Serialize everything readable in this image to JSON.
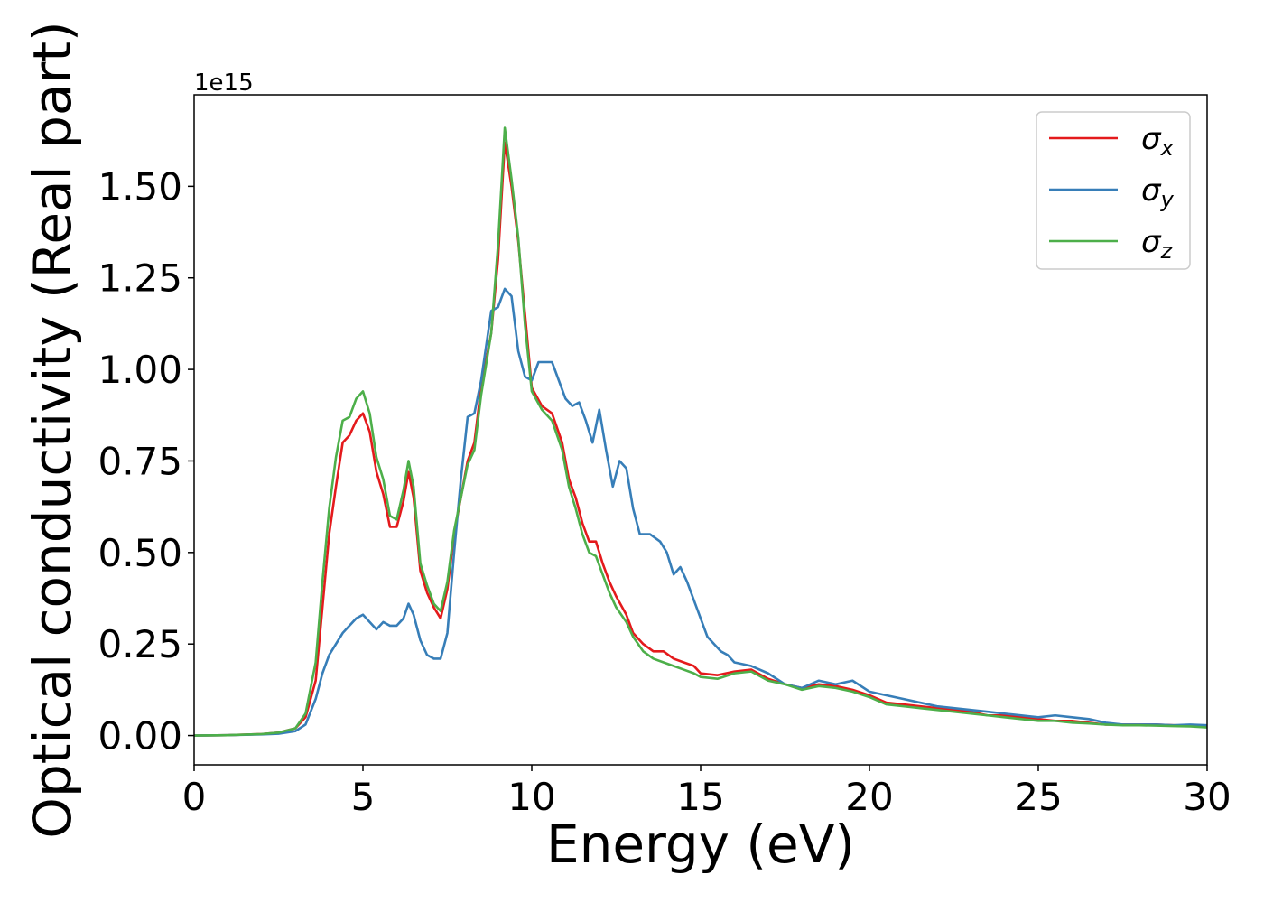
{
  "chart_data": {
    "type": "line",
    "xlabel": "Energy (eV)",
    "ylabel": "Optical conductivity (Real part)",
    "y_offset_text": "1e15",
    "y_scale": 1000000000000000.0,
    "xlim": [
      0,
      30
    ],
    "ylim": [
      -0.08,
      1.75
    ],
    "x_ticks": [
      0,
      5,
      10,
      15,
      20,
      25,
      30
    ],
    "x_tick_labels": [
      "0",
      "5",
      "10",
      "15",
      "20",
      "25",
      "30"
    ],
    "y_ticks": [
      0.0,
      0.25,
      0.5,
      0.75,
      1.0,
      1.25,
      1.5
    ],
    "y_tick_labels": [
      "0.00",
      "0.25",
      "0.50",
      "0.75",
      "1.00",
      "1.25",
      "1.50"
    ],
    "grid": false,
    "legend_position": "top-right",
    "series": [
      {
        "name": "σx",
        "legend_symbol": "σ",
        "legend_subscript": "x",
        "color": "#e41a1c",
        "points": [
          [
            0,
            0
          ],
          [
            1,
            0.001
          ],
          [
            2,
            0.004
          ],
          [
            2.5,
            0.008
          ],
          [
            3,
            0.02
          ],
          [
            3.3,
            0.05
          ],
          [
            3.6,
            0.15
          ],
          [
            3.8,
            0.35
          ],
          [
            4.0,
            0.55
          ],
          [
            4.2,
            0.68
          ],
          [
            4.4,
            0.8
          ],
          [
            4.6,
            0.82
          ],
          [
            4.8,
            0.86
          ],
          [
            5.0,
            0.88
          ],
          [
            5.2,
            0.83
          ],
          [
            5.4,
            0.72
          ],
          [
            5.6,
            0.66
          ],
          [
            5.8,
            0.57
          ],
          [
            6.0,
            0.57
          ],
          [
            6.2,
            0.64
          ],
          [
            6.35,
            0.72
          ],
          [
            6.5,
            0.65
          ],
          [
            6.7,
            0.45
          ],
          [
            6.9,
            0.39
          ],
          [
            7.1,
            0.35
          ],
          [
            7.3,
            0.32
          ],
          [
            7.5,
            0.4
          ],
          [
            7.7,
            0.55
          ],
          [
            7.9,
            0.65
          ],
          [
            8.1,
            0.75
          ],
          [
            8.3,
            0.8
          ],
          [
            8.5,
            0.95
          ],
          [
            8.8,
            1.1
          ],
          [
            9.0,
            1.3
          ],
          [
            9.2,
            1.62
          ],
          [
            9.4,
            1.5
          ],
          [
            9.6,
            1.35
          ],
          [
            9.8,
            1.15
          ],
          [
            10.0,
            0.95
          ],
          [
            10.3,
            0.9
          ],
          [
            10.6,
            0.88
          ],
          [
            10.9,
            0.8
          ],
          [
            11.1,
            0.7
          ],
          [
            11.3,
            0.65
          ],
          [
            11.5,
            0.58
          ],
          [
            11.7,
            0.53
          ],
          [
            11.9,
            0.53
          ],
          [
            12.1,
            0.47
          ],
          [
            12.3,
            0.42
          ],
          [
            12.5,
            0.38
          ],
          [
            12.8,
            0.33
          ],
          [
            13.0,
            0.28
          ],
          [
            13.3,
            0.25
          ],
          [
            13.6,
            0.23
          ],
          [
            13.9,
            0.23
          ],
          [
            14.2,
            0.21
          ],
          [
            14.5,
            0.2
          ],
          [
            14.8,
            0.19
          ],
          [
            15.0,
            0.17
          ],
          [
            15.5,
            0.165
          ],
          [
            16.0,
            0.175
          ],
          [
            16.5,
            0.18
          ],
          [
            17.0,
            0.155
          ],
          [
            17.5,
            0.14
          ],
          [
            18.0,
            0.13
          ],
          [
            18.5,
            0.14
          ],
          [
            19.0,
            0.135
          ],
          [
            19.5,
            0.125
          ],
          [
            20.0,
            0.11
          ],
          [
            20.5,
            0.09
          ],
          [
            21.0,
            0.085
          ],
          [
            21.5,
            0.08
          ],
          [
            22.0,
            0.075
          ],
          [
            22.5,
            0.07
          ],
          [
            23.0,
            0.065
          ],
          [
            23.5,
            0.055
          ],
          [
            24.0,
            0.055
          ],
          [
            24.5,
            0.05
          ],
          [
            25.0,
            0.045
          ],
          [
            25.5,
            0.04
          ],
          [
            26.0,
            0.04
          ],
          [
            26.5,
            0.035
          ],
          [
            27.0,
            0.03
          ],
          [
            27.5,
            0.03
          ],
          [
            28.0,
            0.03
          ],
          [
            28.5,
            0.03
          ],
          [
            29.0,
            0.028
          ],
          [
            29.5,
            0.027
          ],
          [
            30.0,
            0.025
          ]
        ]
      },
      {
        "name": "σy",
        "legend_symbol": "σ",
        "legend_subscript": "y",
        "color": "#377eb8",
        "points": [
          [
            0,
            0
          ],
          [
            1,
            0.001
          ],
          [
            2,
            0.003
          ],
          [
            2.5,
            0.005
          ],
          [
            3,
            0.012
          ],
          [
            3.3,
            0.03
          ],
          [
            3.6,
            0.1
          ],
          [
            3.8,
            0.17
          ],
          [
            4.0,
            0.22
          ],
          [
            4.2,
            0.25
          ],
          [
            4.4,
            0.28
          ],
          [
            4.6,
            0.3
          ],
          [
            4.8,
            0.32
          ],
          [
            5.0,
            0.33
          ],
          [
            5.2,
            0.31
          ],
          [
            5.4,
            0.29
          ],
          [
            5.6,
            0.31
          ],
          [
            5.8,
            0.3
          ],
          [
            6.0,
            0.3
          ],
          [
            6.2,
            0.32
          ],
          [
            6.35,
            0.36
          ],
          [
            6.5,
            0.33
          ],
          [
            6.7,
            0.26
          ],
          [
            6.9,
            0.22
          ],
          [
            7.1,
            0.21
          ],
          [
            7.3,
            0.21
          ],
          [
            7.5,
            0.28
          ],
          [
            7.7,
            0.5
          ],
          [
            7.9,
            0.7
          ],
          [
            8.1,
            0.87
          ],
          [
            8.3,
            0.88
          ],
          [
            8.5,
            0.97
          ],
          [
            8.8,
            1.16
          ],
          [
            9.0,
            1.17
          ],
          [
            9.2,
            1.22
          ],
          [
            9.4,
            1.2
          ],
          [
            9.6,
            1.05
          ],
          [
            9.8,
            0.98
          ],
          [
            10.0,
            0.97
          ],
          [
            10.2,
            1.02
          ],
          [
            10.4,
            1.02
          ],
          [
            10.6,
            1.02
          ],
          [
            10.8,
            0.97
          ],
          [
            11.0,
            0.92
          ],
          [
            11.2,
            0.9
          ],
          [
            11.4,
            0.91
          ],
          [
            11.6,
            0.86
          ],
          [
            11.8,
            0.8
          ],
          [
            12.0,
            0.89
          ],
          [
            12.2,
            0.78
          ],
          [
            12.4,
            0.68
          ],
          [
            12.6,
            0.75
          ],
          [
            12.8,
            0.73
          ],
          [
            13.0,
            0.62
          ],
          [
            13.2,
            0.55
          ],
          [
            13.5,
            0.55
          ],
          [
            13.8,
            0.53
          ],
          [
            14.0,
            0.5
          ],
          [
            14.2,
            0.44
          ],
          [
            14.4,
            0.46
          ],
          [
            14.6,
            0.42
          ],
          [
            14.8,
            0.37
          ],
          [
            15.0,
            0.32
          ],
          [
            15.2,
            0.27
          ],
          [
            15.4,
            0.25
          ],
          [
            15.6,
            0.23
          ],
          [
            15.8,
            0.22
          ],
          [
            16.0,
            0.2
          ],
          [
            16.5,
            0.19
          ],
          [
            17.0,
            0.17
          ],
          [
            17.5,
            0.14
          ],
          [
            18.0,
            0.13
          ],
          [
            18.5,
            0.15
          ],
          [
            19.0,
            0.14
          ],
          [
            19.5,
            0.15
          ],
          [
            20.0,
            0.12
          ],
          [
            20.5,
            0.11
          ],
          [
            21.0,
            0.1
          ],
          [
            21.5,
            0.09
          ],
          [
            22.0,
            0.08
          ],
          [
            22.5,
            0.075
          ],
          [
            23.0,
            0.07
          ],
          [
            23.5,
            0.065
          ],
          [
            24.0,
            0.06
          ],
          [
            24.5,
            0.055
          ],
          [
            25.0,
            0.05
          ],
          [
            25.5,
            0.055
          ],
          [
            26.0,
            0.05
          ],
          [
            26.5,
            0.045
          ],
          [
            27.0,
            0.035
          ],
          [
            27.5,
            0.03
          ],
          [
            28.0,
            0.03
          ],
          [
            28.5,
            0.03
          ],
          [
            29.0,
            0.028
          ],
          [
            29.5,
            0.03
          ],
          [
            30.0,
            0.028
          ]
        ]
      },
      {
        "name": "σz",
        "legend_symbol": "σ",
        "legend_subscript": "z",
        "color": "#4daf4a",
        "points": [
          [
            0,
            0
          ],
          [
            1,
            0.001
          ],
          [
            2,
            0.004
          ],
          [
            2.5,
            0.008
          ],
          [
            3,
            0.02
          ],
          [
            3.3,
            0.06
          ],
          [
            3.6,
            0.2
          ],
          [
            3.8,
            0.42
          ],
          [
            4.0,
            0.62
          ],
          [
            4.2,
            0.76
          ],
          [
            4.4,
            0.86
          ],
          [
            4.6,
            0.87
          ],
          [
            4.8,
            0.92
          ],
          [
            5.0,
            0.94
          ],
          [
            5.2,
            0.88
          ],
          [
            5.4,
            0.76
          ],
          [
            5.6,
            0.7
          ],
          [
            5.8,
            0.6
          ],
          [
            6.0,
            0.59
          ],
          [
            6.2,
            0.67
          ],
          [
            6.35,
            0.75
          ],
          [
            6.5,
            0.68
          ],
          [
            6.7,
            0.47
          ],
          [
            6.9,
            0.41
          ],
          [
            7.1,
            0.36
          ],
          [
            7.3,
            0.34
          ],
          [
            7.5,
            0.42
          ],
          [
            7.7,
            0.56
          ],
          [
            7.9,
            0.65
          ],
          [
            8.1,
            0.74
          ],
          [
            8.3,
            0.78
          ],
          [
            8.5,
            0.93
          ],
          [
            8.8,
            1.1
          ],
          [
            9.0,
            1.34
          ],
          [
            9.2,
            1.66
          ],
          [
            9.4,
            1.52
          ],
          [
            9.6,
            1.36
          ],
          [
            9.8,
            1.12
          ],
          [
            10.0,
            0.94
          ],
          [
            10.3,
            0.89
          ],
          [
            10.6,
            0.86
          ],
          [
            10.9,
            0.78
          ],
          [
            11.1,
            0.68
          ],
          [
            11.3,
            0.62
          ],
          [
            11.5,
            0.55
          ],
          [
            11.7,
            0.5
          ],
          [
            11.9,
            0.49
          ],
          [
            12.1,
            0.44
          ],
          [
            12.3,
            0.39
          ],
          [
            12.5,
            0.35
          ],
          [
            12.8,
            0.31
          ],
          [
            13.0,
            0.27
          ],
          [
            13.3,
            0.23
          ],
          [
            13.6,
            0.21
          ],
          [
            13.9,
            0.2
          ],
          [
            14.2,
            0.19
          ],
          [
            14.5,
            0.18
          ],
          [
            14.8,
            0.17
          ],
          [
            15.0,
            0.16
          ],
          [
            15.5,
            0.155
          ],
          [
            16.0,
            0.17
          ],
          [
            16.5,
            0.175
          ],
          [
            17.0,
            0.15
          ],
          [
            17.5,
            0.14
          ],
          [
            18.0,
            0.125
          ],
          [
            18.5,
            0.135
          ],
          [
            19.0,
            0.13
          ],
          [
            19.5,
            0.12
          ],
          [
            20.0,
            0.105
          ],
          [
            20.5,
            0.085
          ],
          [
            21.0,
            0.08
          ],
          [
            21.5,
            0.075
          ],
          [
            22.0,
            0.07
          ],
          [
            22.5,
            0.065
          ],
          [
            23.0,
            0.06
          ],
          [
            23.5,
            0.055
          ],
          [
            24.0,
            0.05
          ],
          [
            24.5,
            0.045
          ],
          [
            25.0,
            0.04
          ],
          [
            25.5,
            0.04
          ],
          [
            26.0,
            0.035
          ],
          [
            26.5,
            0.033
          ],
          [
            27.0,
            0.03
          ],
          [
            27.5,
            0.028
          ],
          [
            28.0,
            0.028
          ],
          [
            28.5,
            0.027
          ],
          [
            29.0,
            0.026
          ],
          [
            29.5,
            0.025
          ],
          [
            30.0,
            0.022
          ]
        ]
      }
    ]
  }
}
